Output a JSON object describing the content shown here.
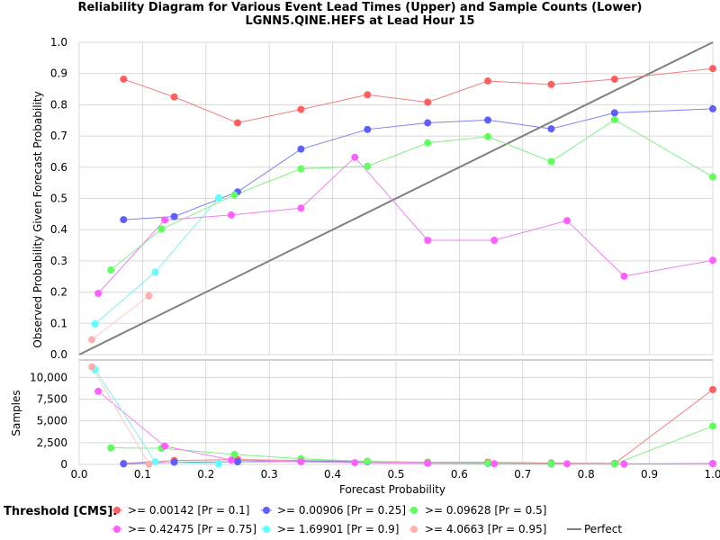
{
  "chart_data": {
    "type": "line",
    "title": "Reliability Diagram for Various Event Lead Times (Upper) and Sample Counts (Lower)",
    "subtitle": "LGNN5.QINE.HEFS at Lead Hour 15",
    "xlabel": "Forecast Probability",
    "xlim": [
      0,
      1
    ],
    "x_ticks": [
      "0.0",
      "0.1",
      "0.2",
      "0.3",
      "0.4",
      "0.5",
      "0.6",
      "0.7",
      "0.8",
      "0.9",
      "1.0"
    ],
    "upper": {
      "ylabel": "Observed Probability Given Forecast Probability",
      "ylim": [
        0,
        1
      ],
      "y_ticks": [
        "0.0",
        "0.1",
        "0.2",
        "0.3",
        "0.4",
        "0.5",
        "0.6",
        "0.7",
        "0.8",
        "0.9",
        "1.0"
      ]
    },
    "lower": {
      "ylabel": "Samples",
      "ylim": [
        0,
        12000
      ],
      "y_ticks": [
        "0",
        "2,500",
        "5,000",
        "7,500",
        "10,000"
      ]
    },
    "grid": true,
    "legend_position": "bottom",
    "legend_title": "Threshold [CMS]:",
    "perfect": {
      "name": "Perfect",
      "color": "#808080",
      "x": [
        0,
        1
      ],
      "y": [
        0,
        1
      ]
    },
    "series": [
      {
        "name": ">= 0.00142 [Pr = 0.1]",
        "color": "#ff5f5f",
        "line_color": "#f08080",
        "x": [
          0.07,
          0.15,
          0.25,
          0.35,
          0.455,
          0.55,
          0.645,
          0.745,
          0.845,
          1.0
        ],
        "y": [
          0.882,
          0.825,
          0.742,
          0.785,
          0.832,
          0.808,
          0.876,
          0.865,
          0.882,
          0.916
        ],
        "samples": [
          100,
          450,
          550,
          450,
          350,
          250,
          250,
          150,
          100,
          8600
        ]
      },
      {
        "name": ">= 0.00906 [Pr = 0.25]",
        "color": "#5f5fff",
        "line_color": "#8080f0",
        "x": [
          0.07,
          0.15,
          0.25,
          0.35,
          0.455,
          0.55,
          0.645,
          0.745,
          0.845,
          1.0
        ],
        "y": [
          0.432,
          0.442,
          0.521,
          0.658,
          0.721,
          0.742,
          0.751,
          0.723,
          0.774,
          0.787
        ],
        "samples": [
          60,
          250,
          300,
          350,
          300,
          200,
          120,
          60,
          60,
          80
        ]
      },
      {
        "name": ">= 0.09628 [Pr = 0.5]",
        "color": "#5fff5f",
        "line_color": "#80f080",
        "x": [
          0.05,
          0.13,
          0.245,
          0.35,
          0.455,
          0.55,
          0.645,
          0.745,
          0.845,
          1.0
        ],
        "y": [
          0.271,
          0.402,
          0.511,
          0.595,
          0.603,
          0.678,
          0.698,
          0.618,
          0.752,
          0.569
        ],
        "samples": [
          1900,
          1850,
          1150,
          650,
          350,
          200,
          150,
          80,
          50,
          4400
        ]
      },
      {
        "name": ">= 0.42475 [Pr = 0.75]",
        "color": "#ff5fff",
        "line_color": "#f080f0",
        "x": [
          0.03,
          0.135,
          0.24,
          0.35,
          0.435,
          0.55,
          0.655,
          0.77,
          0.86,
          1.0
        ],
        "y": [
          0.196,
          0.431,
          0.447,
          0.469,
          0.632,
          0.366,
          0.366,
          0.429,
          0.251,
          0.302
        ],
        "samples": [
          8400,
          2100,
          500,
          300,
          200,
          120,
          80,
          60,
          40,
          100
        ]
      },
      {
        "name": ">= 1.69901 [Pr = 0.9]",
        "color": "#5fffff",
        "line_color": "#80f0f0",
        "x": [
          0.025,
          0.12,
          0.22
        ],
        "y": [
          0.098,
          0.264,
          0.502
        ],
        "samples": [
          10900,
          300,
          60
        ]
      },
      {
        "name": ">= 4.0663 [Pr = 0.95]",
        "color": "#ffafaf",
        "line_color": "#ffc8c8",
        "x": [
          0.02,
          0.11
        ],
        "y": [
          0.048,
          0.188
        ],
        "samples": [
          11200,
          40
        ]
      }
    ]
  }
}
